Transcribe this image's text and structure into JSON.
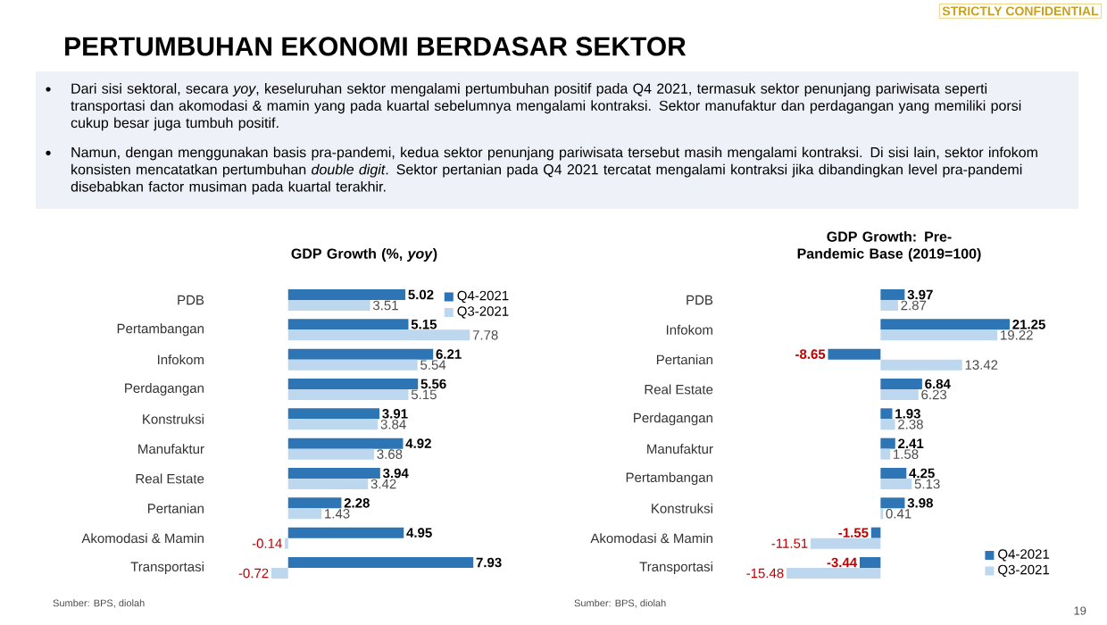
{
  "chart_data": [
    {
      "type": "bar",
      "orientation": "horizontal",
      "title": "GDP Growth (%, *yoy*)",
      "categories": [
        "PDB",
        "Pertambangan",
        "Infokom",
        "Perdagangan",
        "Konstruksi",
        "Manufaktur",
        "Real Estate",
        "Pertanian",
        "Akomodasi & Mamin",
        "Transportasi"
      ],
      "series": [
        {
          "name": "Q4-2021",
          "color": "#2e75b6",
          "values": [
            5.02,
            5.15,
            6.21,
            5.56,
            3.91,
            4.92,
            3.94,
            2.28,
            4.95,
            7.93
          ]
        },
        {
          "name": "Q3-2021",
          "color": "#bdd7ee",
          "values": [
            3.51,
            7.78,
            5.54,
            5.15,
            3.84,
            3.68,
            3.42,
            1.43,
            -0.14,
            -0.72
          ]
        }
      ],
      "data_labels": true,
      "legend": "top right",
      "tick_labels": "y",
      "annotations": [
        "PERTUMBUHAN EKONOMI BERDASAR SEKTOR",
        "Dari sisi sektoral, secara *yoy*, keseluruhan sektor mengalami pertumbuhan positif pada Q4 2021, termasuk sektor penunjang pariwisata seperti transportasi dan akomodasi & mamin yang pada kuartal sebelumnya mengalami kontraksi. Sektor manufaktur dan perdagangan yang memiliki porsi cukup besar juga tumbuh positif.",
        "Namun, dengan menggunakan basis pra-pandemi, kedua sektor penunjang pariwisata tersebut masih mengalami kontraksi. Di sisi lain, sektor infokom konsisten mencatatkan pertumbuhan *double digit*. Sektor pertanian pada Q4 2021 tercatat mengalami kontraksi jika dibandingkan level pra-pandemi disebabkan factor musiman pada kuartal terakhir.",
        "STRICTLY CONFIDENTIAL",
        "Sumber: BPS, diolah",
        "19"
      ]
    },
    {
      "type": "bar",
      "orientation": "horizontal",
      "title": "GDP Growth: Pre-Pandemic Base (2019=100)",
      "categories": [
        "PDB",
        "Infokom",
        "Pertanian",
        "Real Estate",
        "Perdagangan",
        "Manufaktur",
        "Pertambangan",
        "Konstruksi",
        "Akomodasi & Mamin",
        "Transportasi"
      ],
      "series": [
        {
          "name": "Q4-2021",
          "color": "#2e75b6",
          "values": [
            3.97,
            21.25,
            -8.65,
            6.84,
            1.93,
            2.41,
            4.25,
            3.98,
            -1.55,
            -3.44
          ]
        },
        {
          "name": "Q3-2021",
          "color": "#bdd7ee",
          "values": [
            2.87,
            19.22,
            13.42,
            6.23,
            2.38,
            1.58,
            5.13,
            0.41,
            -11.51,
            -15.48
          ]
        }
      ],
      "data_labels": true,
      "legend": "bottom right",
      "tick_labels": "y",
      "annotations": [
        "Sumber: BPS, diolah"
      ]
    }
  ]
}
